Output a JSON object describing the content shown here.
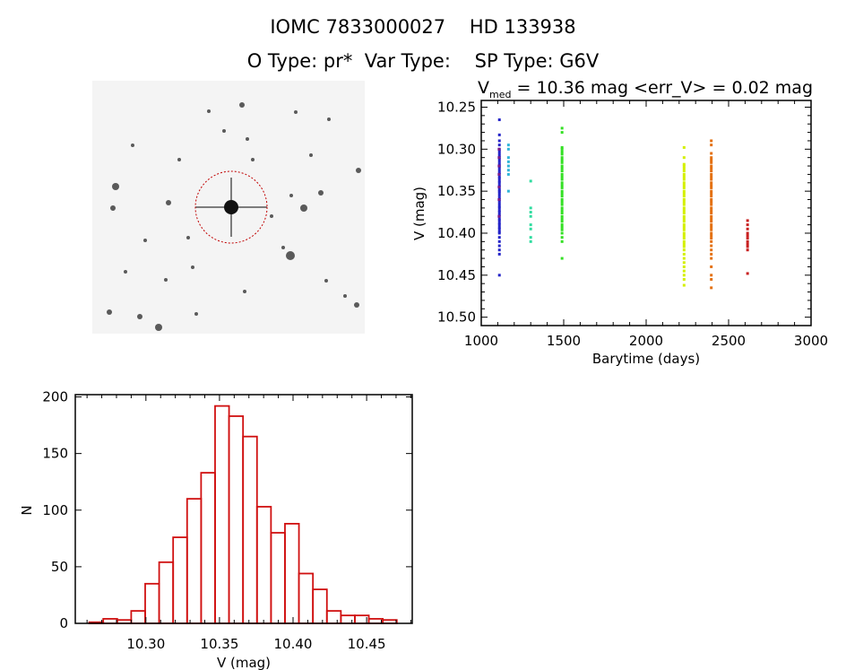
{
  "header": {
    "line1": "IOMC 7833000027    HD 133938",
    "line2": "O Type: pr*  Var Type:    SP Type: G6V"
  },
  "colors": {
    "axis": "#000000",
    "histogram": "#d01010",
    "circle": "#c00000"
  },
  "chart_data": [
    {
      "type": "image",
      "description_note": "",
      "marker": "circle"
    },
    {
      "type": "scatter",
      "title_main": "V",
      "title_sub": "med",
      "title_rest": " = 10.36 mag <err_V> = 0.02 mag",
      "xlabel": "Barytime (days)",
      "ylabel": "V (mag)",
      "xlim": [
        1000,
        3000
      ],
      "ylim": [
        10.242,
        10.51
      ],
      "y_inverted": true,
      "xticks": [
        1000,
        1500,
        2000,
        2500,
        3000
      ],
      "yticks": [
        "10.25",
        "10.30",
        "10.35",
        "10.40",
        "10.45",
        "10.50"
      ],
      "series": [
        {
          "color": "#2424c8",
          "x": 1110,
          "y": [
            10.265,
            10.283,
            10.29,
            10.295,
            10.3,
            10.302,
            10.305,
            10.308,
            10.31,
            10.312,
            10.315,
            10.318,
            10.32,
            10.322,
            10.325,
            10.328,
            10.33,
            10.333,
            10.335,
            10.338,
            10.34,
            10.343,
            10.345,
            10.348,
            10.35,
            10.352,
            10.355,
            10.358,
            10.36,
            10.362,
            10.365,
            10.368,
            10.37,
            10.373,
            10.375,
            10.378,
            10.38,
            10.383,
            10.385,
            10.388,
            10.39,
            10.393,
            10.395,
            10.398,
            10.4,
            10.405,
            10.41,
            10.415,
            10.42,
            10.425,
            10.45
          ]
        },
        {
          "color": "#7a1a8a",
          "x": 1108,
          "y": [
            10.3,
            10.31,
            10.32,
            10.33,
            10.345,
            10.36,
            10.38
          ]
        },
        {
          "color": "#30b4d8",
          "x": 1165,
          "y": [
            10.295,
            10.3,
            10.31,
            10.315,
            10.32,
            10.325,
            10.33,
            10.35
          ]
        },
        {
          "color": "#30dca0",
          "x": 1300,
          "y": [
            10.338,
            10.37,
            10.375,
            10.38,
            10.39,
            10.395,
            10.405,
            10.41
          ]
        },
        {
          "color": "#34e024",
          "x": 1490,
          "y": [
            10.275,
            10.28,
            10.298,
            10.3,
            10.303,
            10.306,
            10.31,
            10.313,
            10.316,
            10.32,
            10.323,
            10.326,
            10.33,
            10.333,
            10.336,
            10.34,
            10.343,
            10.346,
            10.35,
            10.353,
            10.356,
            10.36,
            10.363,
            10.366,
            10.37,
            10.373,
            10.376,
            10.38,
            10.383,
            10.386,
            10.39,
            10.393,
            10.396,
            10.4,
            10.405,
            10.41,
            10.43
          ]
        },
        {
          "color": "#d4f000",
          "x": 2230,
          "y": [
            10.298,
            10.31,
            10.318,
            10.32,
            10.323,
            10.326,
            10.33,
            10.333,
            10.336,
            10.34,
            10.343,
            10.346,
            10.35,
            10.353,
            10.356,
            10.36,
            10.363,
            10.366,
            10.37,
            10.373,
            10.376,
            10.38,
            10.383,
            10.386,
            10.39,
            10.393,
            10.396,
            10.4,
            10.403,
            10.406,
            10.41,
            10.413,
            10.416,
            10.42,
            10.425,
            10.43,
            10.435,
            10.44,
            10.445,
            10.45,
            10.455,
            10.462
          ]
        },
        {
          "color": "#e47010",
          "x": 2395,
          "y": [
            10.29,
            10.295,
            10.305,
            10.31,
            10.313,
            10.316,
            10.32,
            10.323,
            10.326,
            10.33,
            10.333,
            10.336,
            10.34,
            10.343,
            10.346,
            10.35,
            10.353,
            10.356,
            10.36,
            10.363,
            10.366,
            10.37,
            10.373,
            10.376,
            10.38,
            10.383,
            10.386,
            10.39,
            10.393,
            10.396,
            10.4,
            10.403,
            10.406,
            10.41,
            10.415,
            10.42,
            10.425,
            10.43,
            10.44,
            10.45,
            10.455,
            10.465
          ]
        },
        {
          "color": "#c82020",
          "x": 2615,
          "y": [
            10.385,
            10.39,
            10.395,
            10.4,
            10.403,
            10.406,
            10.41,
            10.413,
            10.416,
            10.42,
            10.448
          ]
        }
      ]
    },
    {
      "type": "bar",
      "subtype": "histogram",
      "xlabel": "V (mag)",
      "ylabel": "N",
      "xlim": [
        10.252,
        10.481
      ],
      "ylim": [
        0,
        202
      ],
      "xticks": [
        "10.30",
        "10.35",
        "10.40",
        "10.45"
      ],
      "yticks": [
        "0",
        "50",
        "100",
        "150",
        "200"
      ],
      "bin_start": 10.2615,
      "bin_width": 0.0095,
      "values": [
        1,
        4,
        3,
        11,
        35,
        54,
        76,
        110,
        133,
        192,
        183,
        165,
        103,
        80,
        88,
        44,
        30,
        11,
        7,
        7,
        4,
        3
      ]
    }
  ]
}
